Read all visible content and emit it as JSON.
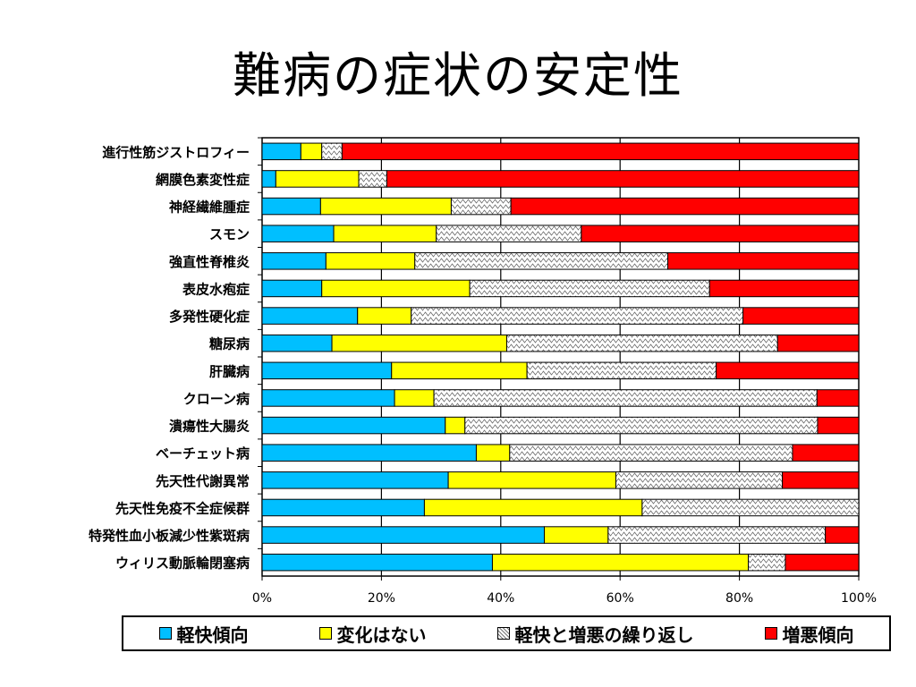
{
  "title": "難病の症状の安定性",
  "legend": [
    {
      "label": "軽快傾向",
      "color": "#00BFFF"
    },
    {
      "label": "変化はない",
      "color": "#FFFF00"
    },
    {
      "label": "軽快と増悪の繰り返し",
      "color": "#FFFFFF",
      "pattern": "hatch"
    },
    {
      "label": "増悪傾向",
      "color": "#FF0000"
    }
  ],
  "chart_data": {
    "type": "bar",
    "orientation": "horizontal",
    "stacked": "percent",
    "categories": [
      "進行性筋ジストロフィー",
      "網膜色素変性症",
      "神経繊維腫症",
      "スモン",
      "強直性脊椎炎",
      "表皮水疱症",
      "多発性硬化症",
      "糖尿病",
      "肝臓病",
      "クローン病",
      "潰瘍性大腸炎",
      "ベーチェット病",
      "先天性代謝異常",
      "先天性免疫不全症候群",
      "特発性血小板減少性紫斑病",
      "ウィリス動脈輪閉塞病"
    ],
    "series": [
      {
        "name": "軽快傾向",
        "color": "#00BFFF",
        "values": [
          6.5,
          2.3,
          9.8,
          12.0,
          10.7,
          10.0,
          16.0,
          11.7,
          21.7,
          22.2,
          30.7,
          35.9,
          31.2,
          27.2,
          47.3,
          38.6
        ]
      },
      {
        "name": "変化はない",
        "color": "#FFFF00",
        "values": [
          3.5,
          13.9,
          21.9,
          17.2,
          14.9,
          24.8,
          9.0,
          29.3,
          22.7,
          6.6,
          3.3,
          5.6,
          28.1,
          36.5,
          10.7,
          42.9
        ]
      },
      {
        "name": "軽快と増悪の繰り返し",
        "color": "#FFFFFF",
        "pattern": "hatch",
        "values": [
          3.4,
          4.7,
          10.0,
          24.3,
          42.4,
          40.2,
          55.6,
          45.4,
          31.7,
          64.2,
          59.1,
          47.4,
          27.9,
          36.3,
          36.4,
          6.2
        ]
      },
      {
        "name": "増悪傾向",
        "color": "#FF0000",
        "values": [
          86.6,
          79.1,
          58.3,
          46.5,
          32.0,
          25.0,
          19.4,
          13.6,
          23.9,
          7.0,
          6.9,
          11.1,
          12.8,
          0.0,
          5.6,
          12.3
        ]
      }
    ],
    "xticks": [
      "0%",
      "20%",
      "40%",
      "60%",
      "80%",
      "100%"
    ],
    "xlim": [
      0,
      100
    ],
    "grid": true,
    "legend_position": "bottom"
  }
}
